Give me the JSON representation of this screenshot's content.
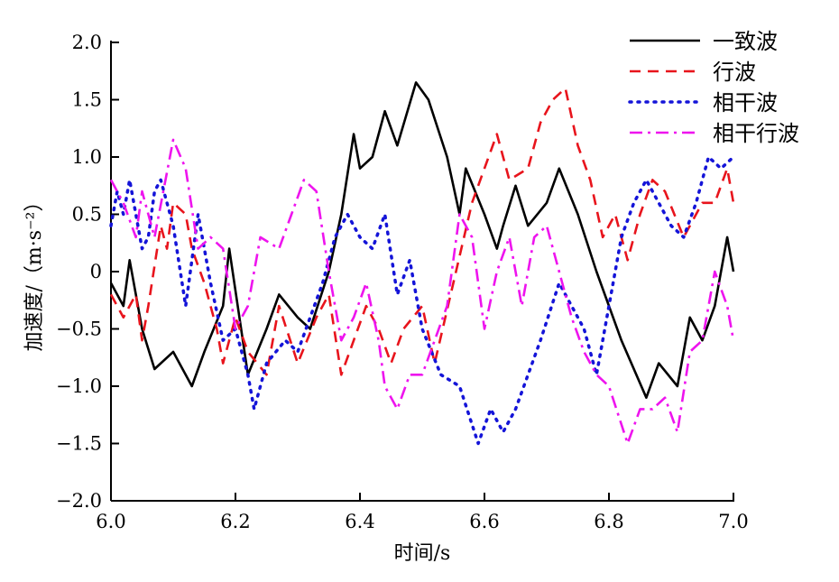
{
  "chart_data": {
    "type": "line",
    "title": "",
    "xlabel": "时间/s",
    "ylabel": "加速度/（m·s⁻²）",
    "xlim": [
      6.0,
      7.0
    ],
    "ylim": [
      -2.0,
      2.0
    ],
    "xticks": [
      "6.0",
      "6.2",
      "6.4",
      "6.6",
      "6.8",
      "7.0"
    ],
    "yticks": [
      "2.0",
      "1.5",
      "1.0",
      "0.5",
      "0",
      "−0.5",
      "−1.0",
      "−1.5",
      "−2.0"
    ],
    "grid": false,
    "legend_position": "top-right",
    "series": [
      {
        "name": "一致波",
        "color": "#000000",
        "style": "solid",
        "x": [
          6.0,
          6.02,
          6.03,
          6.05,
          6.07,
          6.1,
          6.13,
          6.15,
          6.18,
          6.19,
          6.22,
          6.25,
          6.27,
          6.3,
          6.32,
          6.35,
          6.37,
          6.39,
          6.4,
          6.42,
          6.44,
          6.46,
          6.49,
          6.51,
          6.54,
          6.56,
          6.57,
          6.6,
          6.62,
          6.63,
          6.65,
          6.67,
          6.7,
          6.72,
          6.75,
          6.78,
          6.82,
          6.86,
          6.88,
          6.91,
          6.93,
          6.95,
          6.97,
          6.99,
          7.0
        ],
        "y": [
          -0.1,
          -0.3,
          0.1,
          -0.5,
          -0.85,
          -0.7,
          -1.0,
          -0.7,
          -0.3,
          0.2,
          -0.9,
          -0.5,
          -0.2,
          -0.4,
          -0.5,
          0.0,
          0.5,
          1.2,
          0.9,
          1.0,
          1.4,
          1.1,
          1.65,
          1.5,
          1.0,
          0.5,
          0.9,
          0.5,
          0.2,
          0.4,
          0.75,
          0.4,
          0.6,
          0.9,
          0.5,
          0.0,
          -0.6,
          -1.1,
          -0.8,
          -1.0,
          -0.4,
          -0.6,
          -0.3,
          0.3,
          0.0
        ]
      },
      {
        "name": "行波",
        "color": "#e8141c",
        "style": "dashed",
        "x": [
          6.0,
          6.01,
          6.02,
          6.04,
          6.05,
          6.06,
          6.08,
          6.09,
          6.1,
          6.12,
          6.13,
          6.15,
          6.17,
          6.18,
          6.2,
          6.22,
          6.25,
          6.27,
          6.3,
          6.33,
          6.35,
          6.37,
          6.39,
          6.41,
          6.43,
          6.45,
          6.47,
          6.5,
          6.52,
          6.55,
          6.58,
          6.6,
          6.62,
          6.64,
          6.67,
          6.69,
          6.71,
          6.73,
          6.75,
          6.77,
          6.79,
          6.81,
          6.83,
          6.85,
          6.87,
          6.89,
          6.92,
          6.95,
          6.97,
          6.99,
          7.0
        ],
        "y": [
          -0.2,
          -0.3,
          -0.4,
          -0.2,
          -0.6,
          -0.3,
          0.4,
          0.2,
          0.6,
          0.5,
          0.2,
          -0.1,
          -0.5,
          -0.8,
          -0.4,
          -0.7,
          -0.9,
          -0.3,
          -0.8,
          -0.4,
          -0.2,
          -0.9,
          -0.6,
          -0.3,
          -0.5,
          -0.8,
          -0.5,
          -0.3,
          -0.8,
          -0.1,
          0.6,
          0.9,
          1.2,
          0.8,
          0.9,
          1.3,
          1.5,
          1.6,
          1.1,
          0.8,
          0.3,
          0.5,
          0.1,
          0.5,
          0.8,
          0.7,
          0.3,
          0.6,
          0.6,
          0.9,
          0.6
        ]
      },
      {
        "name": "相干波",
        "color": "#1414d8",
        "style": "dotted",
        "x": [
          6.0,
          6.01,
          6.02,
          6.03,
          6.05,
          6.06,
          6.07,
          6.08,
          6.1,
          6.12,
          6.14,
          6.16,
          6.18,
          6.2,
          6.22,
          6.23,
          6.25,
          6.28,
          6.3,
          6.32,
          6.34,
          6.36,
          6.38,
          6.4,
          6.42,
          6.44,
          6.46,
          6.48,
          6.5,
          6.53,
          6.56,
          6.59,
          6.61,
          6.63,
          6.65,
          6.67,
          6.69,
          6.72,
          6.74,
          6.76,
          6.78,
          6.8,
          6.82,
          6.84,
          6.86,
          6.88,
          6.9,
          6.92,
          6.94,
          6.96,
          6.98,
          7.0
        ],
        "y": [
          0.4,
          0.7,
          0.5,
          0.8,
          0.2,
          0.3,
          0.7,
          0.8,
          0.4,
          -0.3,
          0.5,
          -0.1,
          -0.6,
          -0.5,
          -0.9,
          -1.2,
          -0.8,
          -0.6,
          -0.7,
          -0.4,
          -0.1,
          0.3,
          0.5,
          0.3,
          0.2,
          0.5,
          -0.2,
          0.1,
          -0.5,
          -0.9,
          -1.0,
          -1.5,
          -1.2,
          -1.4,
          -1.2,
          -0.9,
          -0.6,
          -0.1,
          -0.3,
          -0.5,
          -0.9,
          -0.3,
          0.3,
          0.6,
          0.8,
          0.6,
          0.4,
          0.3,
          0.6,
          1.0,
          0.9,
          1.0
        ]
      },
      {
        "name": "相干行波",
        "color": "#ee14ee",
        "style": "dashdot",
        "x": [
          6.0,
          6.02,
          6.04,
          6.05,
          6.07,
          6.1,
          6.12,
          6.14,
          6.16,
          6.18,
          6.2,
          6.22,
          6.24,
          6.27,
          6.29,
          6.31,
          6.33,
          6.35,
          6.37,
          6.39,
          6.41,
          6.43,
          6.44,
          6.46,
          6.48,
          6.5,
          6.52,
          6.54,
          6.56,
          6.58,
          6.6,
          6.62,
          6.64,
          6.66,
          6.68,
          6.7,
          6.72,
          6.74,
          6.76,
          6.78,
          6.8,
          6.83,
          6.85,
          6.87,
          6.89,
          6.91,
          6.93,
          6.95,
          6.97,
          6.99,
          7.0
        ],
        "y": [
          0.8,
          0.6,
          0.3,
          0.7,
          0.3,
          1.15,
          0.9,
          0.2,
          0.3,
          0.2,
          -0.5,
          -0.3,
          0.3,
          0.2,
          0.5,
          0.8,
          0.7,
          0.0,
          -0.6,
          -0.4,
          -0.1,
          -0.6,
          -1.0,
          -1.2,
          -0.9,
          -0.9,
          -0.6,
          -0.3,
          0.5,
          0.3,
          -0.5,
          0.0,
          0.3,
          -0.3,
          0.3,
          0.4,
          0.0,
          -0.4,
          -0.7,
          -0.9,
          -1.0,
          -1.5,
          -1.2,
          -1.2,
          -1.1,
          -1.4,
          -0.7,
          -0.6,
          0.0,
          -0.3,
          -0.6
        ]
      }
    ]
  }
}
